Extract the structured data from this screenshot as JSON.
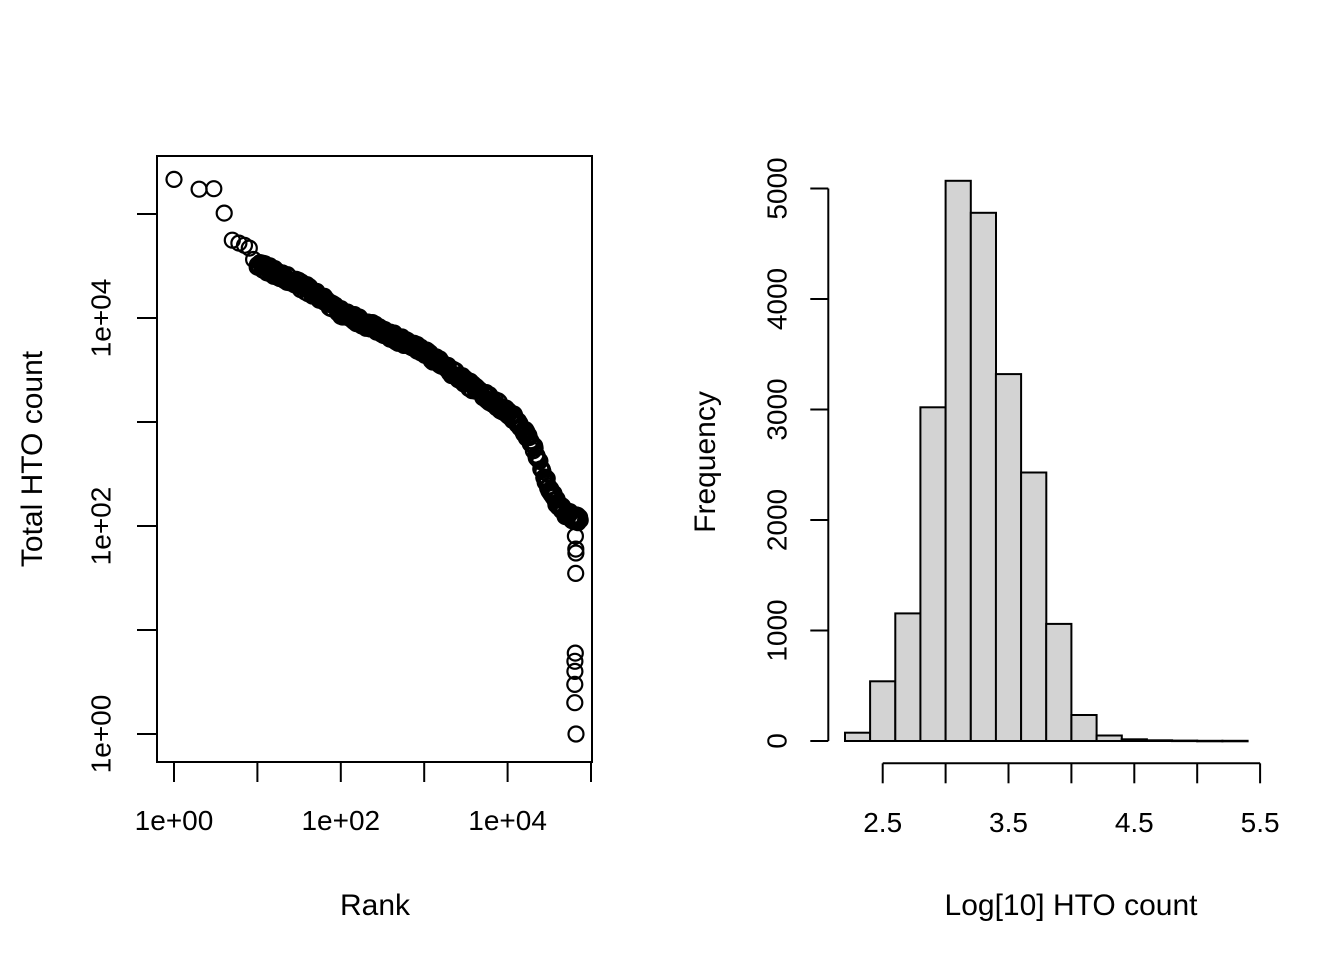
{
  "figure": {
    "background": "#ffffff",
    "foreground": "#000000",
    "description": "Two R base-graphics panels: a log-log barcode rank knee plot of total HTO counts, and a histogram of per-cell log10 HTO counts"
  },
  "chart_data": [
    {
      "type": "scatter",
      "title": "",
      "xlabel": "Rank",
      "ylabel": "Total HTO count",
      "x_scale": "log10",
      "y_scale": "log10",
      "xlim_log": [
        0,
        5
      ],
      "ylim_log": [
        0,
        5.33
      ],
      "x_tick_exponents": [
        0,
        1,
        2,
        3,
        4,
        5
      ],
      "x_tick_labels": [
        "1e+00",
        "",
        "1e+02",
        "",
        "1e+04",
        ""
      ],
      "y_tick_exponents": [
        0,
        1,
        2,
        3,
        4,
        5
      ],
      "y_tick_labels": [
        "1e+00",
        "",
        "1e+02",
        "",
        "1e+04",
        ""
      ],
      "marker": "open-circle",
      "marker_color": "#000000",
      "box": true,
      "head_points": [
        [
          1,
          215000
        ],
        [
          2,
          173000
        ],
        [
          3,
          175000
        ],
        [
          4,
          102000
        ],
        [
          5,
          56000
        ],
        [
          6,
          52500
        ],
        [
          7,
          50000
        ],
        [
          8,
          47000
        ],
        [
          9,
          36500
        ],
        [
          10,
          32500
        ]
      ],
      "curve_anchors_log": [
        [
          1.0,
          4.51
        ],
        [
          1.1,
          4.48
        ],
        [
          1.3,
          4.4
        ],
        [
          1.5,
          4.32
        ],
        [
          1.7,
          4.23
        ],
        [
          2.0,
          4.05
        ],
        [
          2.25,
          3.96
        ],
        [
          2.5,
          3.87
        ],
        [
          2.75,
          3.77
        ],
        [
          3.0,
          3.67
        ],
        [
          3.25,
          3.53
        ],
        [
          3.5,
          3.38
        ],
        [
          3.75,
          3.24
        ],
        [
          4.0,
          3.1
        ],
        [
          4.15,
          2.97
        ],
        [
          4.27,
          2.83
        ],
        [
          4.38,
          2.62
        ],
        [
          4.45,
          2.46
        ],
        [
          4.51,
          2.35
        ],
        [
          4.57,
          2.25
        ],
        [
          4.63,
          2.17
        ],
        [
          4.7,
          2.12
        ],
        [
          4.78,
          2.08
        ],
        [
          4.87,
          2.05
        ]
      ],
      "band_step_log": 0.0075,
      "band_jitter_log": 0.085,
      "tail_outliers": {
        "rank": 65000,
        "counts": [
          80,
          60,
          55,
          35,
          6,
          5,
          4,
          3,
          2,
          1
        ]
      }
    },
    {
      "type": "histogram",
      "title": "",
      "xlabel": "Log[10] HTO count",
      "ylabel": "Frequency",
      "bin_start": 2.2,
      "bin_width": 0.2,
      "bin_end": 5.4,
      "counts": [
        75,
        540,
        1155,
        3020,
        5070,
        4780,
        3320,
        2430,
        1060,
        235,
        50,
        15,
        6,
        4,
        2,
        2
      ],
      "x_ticks": [
        2.5,
        3.0,
        3.5,
        4.0,
        4.5,
        5.0,
        5.5
      ],
      "x_tick_labels": [
        "2.5",
        "",
        "3.5",
        "",
        "4.5",
        "",
        "5.5"
      ],
      "y_ticks": [
        0,
        1000,
        2000,
        3000,
        4000,
        5000
      ],
      "y_tick_labels": [
        "0",
        "1000",
        "2000",
        "3000",
        "4000",
        "5000"
      ],
      "ylim": [
        0,
        5000
      ],
      "bar_fill": "#d3d3d3",
      "bar_stroke": "#000000",
      "grid": false,
      "legend": false
    }
  ]
}
